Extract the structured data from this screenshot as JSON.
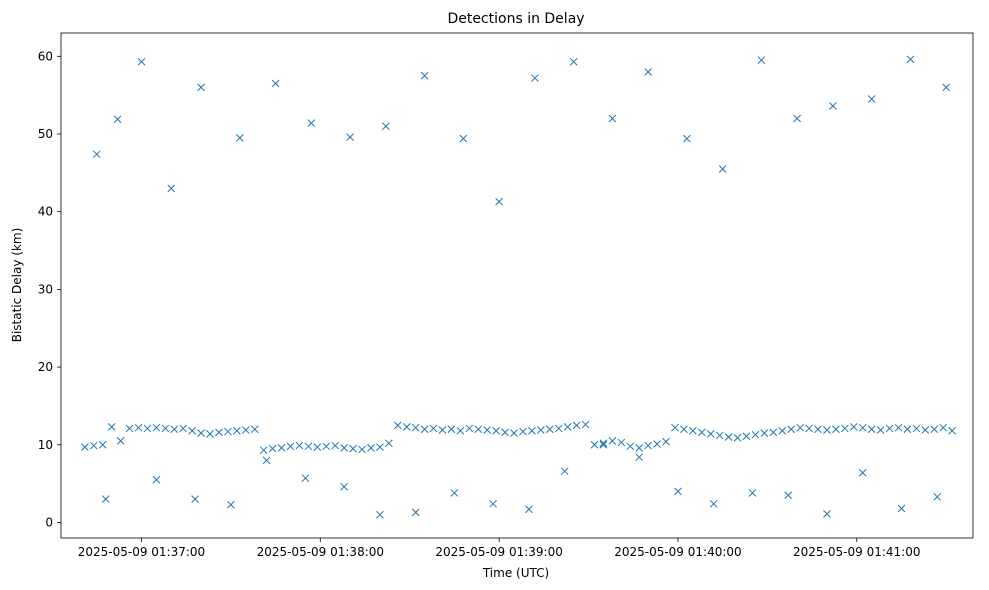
{
  "chart_data": {
    "type": "scatter",
    "title": "Detections in Delay",
    "xlabel": "Time (UTC)",
    "ylabel": "Bistatic Delay (km)",
    "grid": false,
    "marker": "x",
    "color": "#1f77b4",
    "xlim": [
      "2025-05-09 01:36:33",
      "2025-05-09 01:41:39"
    ],
    "ylim": [
      -2,
      63
    ],
    "xticks": [
      "2025-05-09 01:37:00",
      "2025-05-09 01:38:00",
      "2025-05-09 01:39:00",
      "2025-05-09 01:40:00",
      "2025-05-09 01:41:00"
    ],
    "yticks": [
      0,
      10,
      20,
      30,
      40,
      50,
      60
    ],
    "series": [
      {
        "x": [
          "2025-05-09 01:36:41",
          "2025-05-09 01:36:44",
          "2025-05-09 01:36:47",
          "2025-05-09 01:36:50",
          "2025-05-09 01:36:53",
          "2025-05-09 01:36:56",
          "2025-05-09 01:36:59",
          "2025-05-09 01:37:02",
          "2025-05-09 01:37:05",
          "2025-05-09 01:37:08",
          "2025-05-09 01:37:11",
          "2025-05-09 01:37:14",
          "2025-05-09 01:37:17",
          "2025-05-09 01:37:20",
          "2025-05-09 01:37:23",
          "2025-05-09 01:37:26",
          "2025-05-09 01:37:29",
          "2025-05-09 01:37:32",
          "2025-05-09 01:37:35",
          "2025-05-09 01:37:38",
          "2025-05-09 01:37:41",
          "2025-05-09 01:37:44",
          "2025-05-09 01:37:47",
          "2025-05-09 01:37:50",
          "2025-05-09 01:37:53",
          "2025-05-09 01:37:56",
          "2025-05-09 01:37:59",
          "2025-05-09 01:38:02",
          "2025-05-09 01:38:05",
          "2025-05-09 01:38:08",
          "2025-05-09 01:38:11",
          "2025-05-09 01:38:14",
          "2025-05-09 01:38:17",
          "2025-05-09 01:38:20",
          "2025-05-09 01:38:23",
          "2025-05-09 01:38:26",
          "2025-05-09 01:38:29",
          "2025-05-09 01:38:32",
          "2025-05-09 01:38:35",
          "2025-05-09 01:38:38",
          "2025-05-09 01:38:41",
          "2025-05-09 01:38:44",
          "2025-05-09 01:38:47",
          "2025-05-09 01:38:50",
          "2025-05-09 01:38:53",
          "2025-05-09 01:38:56",
          "2025-05-09 01:38:59",
          "2025-05-09 01:39:02",
          "2025-05-09 01:39:05",
          "2025-05-09 01:39:08",
          "2025-05-09 01:39:11",
          "2025-05-09 01:39:14",
          "2025-05-09 01:39:17",
          "2025-05-09 01:39:20",
          "2025-05-09 01:39:23",
          "2025-05-09 01:39:26",
          "2025-05-09 01:39:29",
          "2025-05-09 01:39:32",
          "2025-05-09 01:39:35",
          "2025-05-09 01:39:38",
          "2025-05-09 01:39:41",
          "2025-05-09 01:39:44",
          "2025-05-09 01:39:47",
          "2025-05-09 01:39:50",
          "2025-05-09 01:39:53",
          "2025-05-09 01:39:56",
          "2025-05-09 01:39:59",
          "2025-05-09 01:40:02",
          "2025-05-09 01:40:05",
          "2025-05-09 01:40:08",
          "2025-05-09 01:40:11",
          "2025-05-09 01:40:14",
          "2025-05-09 01:40:17",
          "2025-05-09 01:40:20",
          "2025-05-09 01:40:23",
          "2025-05-09 01:40:26",
          "2025-05-09 01:40:29",
          "2025-05-09 01:40:32",
          "2025-05-09 01:40:35",
          "2025-05-09 01:40:38",
          "2025-05-09 01:40:41",
          "2025-05-09 01:40:44",
          "2025-05-09 01:40:47",
          "2025-05-09 01:40:50",
          "2025-05-09 01:40:53",
          "2025-05-09 01:40:56",
          "2025-05-09 01:40:59",
          "2025-05-09 01:41:02",
          "2025-05-09 01:41:05",
          "2025-05-09 01:41:08",
          "2025-05-09 01:41:11",
          "2025-05-09 01:41:14",
          "2025-05-09 01:41:17",
          "2025-05-09 01:41:20",
          "2025-05-09 01:41:23",
          "2025-05-09 01:41:26",
          "2025-05-09 01:41:29",
          "2025-05-09 01:41:32",
          "2025-05-09 01:36:45",
          "2025-05-09 01:36:52",
          "2025-05-09 01:37:00",
          "2025-05-09 01:37:10",
          "2025-05-09 01:37:20",
          "2025-05-09 01:37:33",
          "2025-05-09 01:37:45",
          "2025-05-09 01:37:57",
          "2025-05-09 01:38:10",
          "2025-05-09 01:38:22",
          "2025-05-09 01:38:35",
          "2025-05-09 01:38:48",
          "2025-05-09 01:39:00",
          "2025-05-09 01:39:12",
          "2025-05-09 01:39:25",
          "2025-05-09 01:39:38",
          "2025-05-09 01:39:50",
          "2025-05-09 01:40:03",
          "2025-05-09 01:40:15",
          "2025-05-09 01:40:28",
          "2025-05-09 01:40:40",
          "2025-05-09 01:40:52",
          "2025-05-09 01:41:05",
          "2025-05-09 01:41:18",
          "2025-05-09 01:41:30",
          "2025-05-09 01:36:48",
          "2025-05-09 01:37:05",
          "2025-05-09 01:37:18",
          "2025-05-09 01:37:30",
          "2025-05-09 01:37:42",
          "2025-05-09 01:37:55",
          "2025-05-09 01:38:08",
          "2025-05-09 01:38:20",
          "2025-05-09 01:38:32",
          "2025-05-09 01:38:45",
          "2025-05-09 01:38:58",
          "2025-05-09 01:39:10",
          "2025-05-09 01:39:22",
          "2025-05-09 01:39:35",
          "2025-05-09 01:39:47",
          "2025-05-09 01:40:00",
          "2025-05-09 01:40:12",
          "2025-05-09 01:40:25",
          "2025-05-09 01:40:37",
          "2025-05-09 01:40:50",
          "2025-05-09 01:41:02",
          "2025-05-09 01:41:15",
          "2025-05-09 01:41:27"
        ],
        "y": [
          9.7,
          9.9,
          10.0,
          12.3,
          10.5,
          12.1,
          12.2,
          12.1,
          12.2,
          12.1,
          12.0,
          12.1,
          11.8,
          11.5,
          11.4,
          11.6,
          11.7,
          11.8,
          11.9,
          12.0,
          9.3,
          9.5,
          9.6,
          9.8,
          9.9,
          9.8,
          9.7,
          9.8,
          9.9,
          9.6,
          9.5,
          9.4,
          9.6,
          9.7,
          10.2,
          12.5,
          12.3,
          12.2,
          12.0,
          12.1,
          11.9,
          12.0,
          11.8,
          12.1,
          12.0,
          11.9,
          11.8,
          11.6,
          11.5,
          11.7,
          11.8,
          11.9,
          12.0,
          12.1,
          12.3,
          12.5,
          12.6,
          10.0,
          10.2,
          10.5,
          10.3,
          9.8,
          9.6,
          9.9,
          10.1,
          10.4,
          12.2,
          12.0,
          11.8,
          11.6,
          11.4,
          11.2,
          11.0,
          10.9,
          11.1,
          11.3,
          11.5,
          11.6,
          11.8,
          12.0,
          12.2,
          12.1,
          12.0,
          11.9,
          12.0,
          12.1,
          12.3,
          12.2,
          12.0,
          11.9,
          12.1,
          12.2,
          12.0,
          12.1,
          11.9,
          12.0,
          12.2,
          11.8,
          47.4,
          51.9,
          59.3,
          43.0,
          56.0,
          49.5,
          56.5,
          51.4,
          49.6,
          51.0,
          57.5,
          49.4,
          41.3,
          57.2,
          59.3,
          52.0,
          58.0,
          49.4,
          45.5,
          59.5,
          52.0,
          53.6,
          54.5,
          59.6,
          56.0,
          3.0,
          5.5,
          3.0,
          2.3,
          8.0,
          5.7,
          4.6,
          1.0,
          1.3,
          3.8,
          2.4,
          1.7,
          6.6,
          10.0,
          8.4,
          4.0,
          2.4,
          3.8,
          3.5,
          1.1,
          6.4,
          1.8,
          3.3
        ]
      }
    ]
  }
}
